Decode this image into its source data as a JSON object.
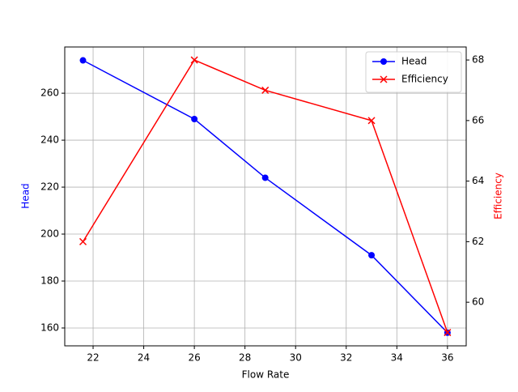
{
  "chart_data": {
    "type": "line",
    "x": [
      21.6,
      26,
      28.8,
      33,
      36
    ],
    "xlabel": "Flow Rate",
    "ylabel": "Head",
    "y2label": "Efficiency",
    "xlim": [
      20.88,
      36.74
    ],
    "xticks": [
      22,
      24,
      26,
      28,
      30,
      32,
      34,
      36
    ],
    "ylim": [
      152.4,
      279.7
    ],
    "yticks": [
      160,
      180,
      200,
      220,
      240,
      260
    ],
    "y2lim": [
      58.56,
      68.43
    ],
    "y2ticks": [
      60,
      62,
      64,
      66,
      68
    ],
    "grid": true,
    "legend": "upper-right",
    "series": [
      {
        "name": "Head",
        "color": "#0000ff",
        "marker": "circle",
        "values": [
          274,
          249,
          224,
          191,
          158
        ]
      },
      {
        "name": "Efficiency",
        "color": "#ff0000",
        "marker": "x",
        "axis": "y2",
        "values": [
          62,
          68,
          67,
          66,
          59
        ]
      }
    ]
  }
}
